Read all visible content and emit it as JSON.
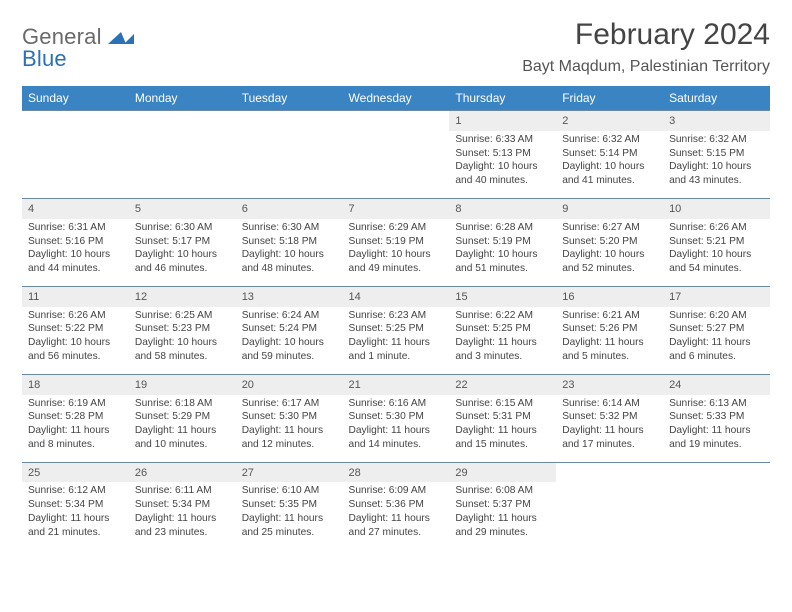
{
  "brand": {
    "name1": "General",
    "name2": "Blue"
  },
  "title": "February 2024",
  "location": "Bayt Maqdum, Palestinian Territory",
  "colors": {
    "header_bg": "#3a84c4",
    "header_text": "#ffffff",
    "daynum_bg": "#eeeeee",
    "row_border": "#6b89a3",
    "logo_blue": "#2a72b5",
    "text": "#444444"
  },
  "weekdays": [
    "Sunday",
    "Monday",
    "Tuesday",
    "Wednesday",
    "Thursday",
    "Friday",
    "Saturday"
  ],
  "weeks": [
    [
      null,
      null,
      null,
      null,
      {
        "n": "1",
        "sr": "Sunrise: 6:33 AM",
        "ss": "Sunset: 5:13 PM",
        "d1": "Daylight: 10 hours",
        "d2": "and 40 minutes."
      },
      {
        "n": "2",
        "sr": "Sunrise: 6:32 AM",
        "ss": "Sunset: 5:14 PM",
        "d1": "Daylight: 10 hours",
        "d2": "and 41 minutes."
      },
      {
        "n": "3",
        "sr": "Sunrise: 6:32 AM",
        "ss": "Sunset: 5:15 PM",
        "d1": "Daylight: 10 hours",
        "d2": "and 43 minutes."
      }
    ],
    [
      {
        "n": "4",
        "sr": "Sunrise: 6:31 AM",
        "ss": "Sunset: 5:16 PM",
        "d1": "Daylight: 10 hours",
        "d2": "and 44 minutes."
      },
      {
        "n": "5",
        "sr": "Sunrise: 6:30 AM",
        "ss": "Sunset: 5:17 PM",
        "d1": "Daylight: 10 hours",
        "d2": "and 46 minutes."
      },
      {
        "n": "6",
        "sr": "Sunrise: 6:30 AM",
        "ss": "Sunset: 5:18 PM",
        "d1": "Daylight: 10 hours",
        "d2": "and 48 minutes."
      },
      {
        "n": "7",
        "sr": "Sunrise: 6:29 AM",
        "ss": "Sunset: 5:19 PM",
        "d1": "Daylight: 10 hours",
        "d2": "and 49 minutes."
      },
      {
        "n": "8",
        "sr": "Sunrise: 6:28 AM",
        "ss": "Sunset: 5:19 PM",
        "d1": "Daylight: 10 hours",
        "d2": "and 51 minutes."
      },
      {
        "n": "9",
        "sr": "Sunrise: 6:27 AM",
        "ss": "Sunset: 5:20 PM",
        "d1": "Daylight: 10 hours",
        "d2": "and 52 minutes."
      },
      {
        "n": "10",
        "sr": "Sunrise: 6:26 AM",
        "ss": "Sunset: 5:21 PM",
        "d1": "Daylight: 10 hours",
        "d2": "and 54 minutes."
      }
    ],
    [
      {
        "n": "11",
        "sr": "Sunrise: 6:26 AM",
        "ss": "Sunset: 5:22 PM",
        "d1": "Daylight: 10 hours",
        "d2": "and 56 minutes."
      },
      {
        "n": "12",
        "sr": "Sunrise: 6:25 AM",
        "ss": "Sunset: 5:23 PM",
        "d1": "Daylight: 10 hours",
        "d2": "and 58 minutes."
      },
      {
        "n": "13",
        "sr": "Sunrise: 6:24 AM",
        "ss": "Sunset: 5:24 PM",
        "d1": "Daylight: 10 hours",
        "d2": "and 59 minutes."
      },
      {
        "n": "14",
        "sr": "Sunrise: 6:23 AM",
        "ss": "Sunset: 5:25 PM",
        "d1": "Daylight: 11 hours",
        "d2": "and 1 minute."
      },
      {
        "n": "15",
        "sr": "Sunrise: 6:22 AM",
        "ss": "Sunset: 5:25 PM",
        "d1": "Daylight: 11 hours",
        "d2": "and 3 minutes."
      },
      {
        "n": "16",
        "sr": "Sunrise: 6:21 AM",
        "ss": "Sunset: 5:26 PM",
        "d1": "Daylight: 11 hours",
        "d2": "and 5 minutes."
      },
      {
        "n": "17",
        "sr": "Sunrise: 6:20 AM",
        "ss": "Sunset: 5:27 PM",
        "d1": "Daylight: 11 hours",
        "d2": "and 6 minutes."
      }
    ],
    [
      {
        "n": "18",
        "sr": "Sunrise: 6:19 AM",
        "ss": "Sunset: 5:28 PM",
        "d1": "Daylight: 11 hours",
        "d2": "and 8 minutes."
      },
      {
        "n": "19",
        "sr": "Sunrise: 6:18 AM",
        "ss": "Sunset: 5:29 PM",
        "d1": "Daylight: 11 hours",
        "d2": "and 10 minutes."
      },
      {
        "n": "20",
        "sr": "Sunrise: 6:17 AM",
        "ss": "Sunset: 5:30 PM",
        "d1": "Daylight: 11 hours",
        "d2": "and 12 minutes."
      },
      {
        "n": "21",
        "sr": "Sunrise: 6:16 AM",
        "ss": "Sunset: 5:30 PM",
        "d1": "Daylight: 11 hours",
        "d2": "and 14 minutes."
      },
      {
        "n": "22",
        "sr": "Sunrise: 6:15 AM",
        "ss": "Sunset: 5:31 PM",
        "d1": "Daylight: 11 hours",
        "d2": "and 15 minutes."
      },
      {
        "n": "23",
        "sr": "Sunrise: 6:14 AM",
        "ss": "Sunset: 5:32 PM",
        "d1": "Daylight: 11 hours",
        "d2": "and 17 minutes."
      },
      {
        "n": "24",
        "sr": "Sunrise: 6:13 AM",
        "ss": "Sunset: 5:33 PM",
        "d1": "Daylight: 11 hours",
        "d2": "and 19 minutes."
      }
    ],
    [
      {
        "n": "25",
        "sr": "Sunrise: 6:12 AM",
        "ss": "Sunset: 5:34 PM",
        "d1": "Daylight: 11 hours",
        "d2": "and 21 minutes."
      },
      {
        "n": "26",
        "sr": "Sunrise: 6:11 AM",
        "ss": "Sunset: 5:34 PM",
        "d1": "Daylight: 11 hours",
        "d2": "and 23 minutes."
      },
      {
        "n": "27",
        "sr": "Sunrise: 6:10 AM",
        "ss": "Sunset: 5:35 PM",
        "d1": "Daylight: 11 hours",
        "d2": "and 25 minutes."
      },
      {
        "n": "28",
        "sr": "Sunrise: 6:09 AM",
        "ss": "Sunset: 5:36 PM",
        "d1": "Daylight: 11 hours",
        "d2": "and 27 minutes."
      },
      {
        "n": "29",
        "sr": "Sunrise: 6:08 AM",
        "ss": "Sunset: 5:37 PM",
        "d1": "Daylight: 11 hours",
        "d2": "and 29 minutes."
      },
      null,
      null
    ]
  ]
}
